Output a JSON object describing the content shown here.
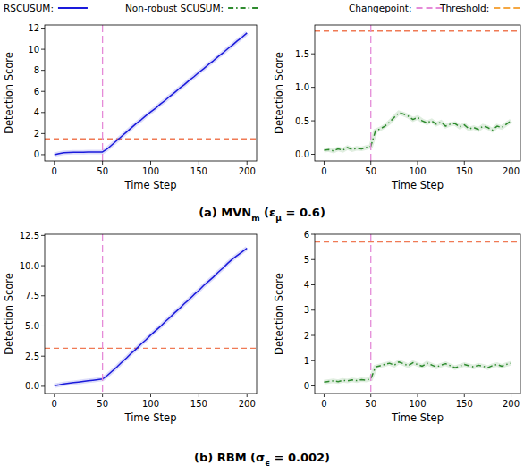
{
  "legend_entries": [
    {
      "name": "RSCUSUM:",
      "color": "#1a1adb",
      "line_style": "solid"
    },
    {
      "name": "Non-robust SCUSUM:",
      "color": "#2e8b2e",
      "line_style": "dashdot"
    },
    {
      "name": "Changepoint:",
      "color": "#e58bd8",
      "line_style": "dashed"
    },
    {
      "name": "Threshold:",
      "color": "#f5a742",
      "line_style": "dashed"
    }
  ],
  "captions": [
    {
      "parts": [
        {
          "text": "(a) MVN"
        },
        {
          "text": "m",
          "sub": true
        },
        {
          "text": " (ε"
        },
        {
          "text": "μ",
          "sub": true
        },
        {
          "text": " = 0.6)"
        }
      ]
    },
    {
      "parts": [
        {
          "text": "(b) RBM (σ"
        },
        {
          "text": "ϵ",
          "sub": true
        },
        {
          "text": " = 0.002)"
        }
      ]
    }
  ],
  "chart_data": [
    {
      "type": "line",
      "xlabel": "Time Step",
      "ylabel": "Detection Score",
      "x": [
        0,
        5,
        10,
        15,
        20,
        25,
        30,
        35,
        40,
        45,
        50,
        55,
        60,
        65,
        70,
        75,
        80,
        85,
        90,
        95,
        100,
        105,
        110,
        115,
        120,
        125,
        130,
        135,
        140,
        145,
        150,
        155,
        160,
        165,
        170,
        175,
        180,
        185,
        190,
        195,
        200
      ],
      "series": [
        {
          "color": "#1a1adb",
          "line_style": "solid",
          "values": [
            0.0,
            0.1,
            0.18,
            0.2,
            0.22,
            0.23,
            0.22,
            0.24,
            0.25,
            0.24,
            0.25,
            0.55,
            0.95,
            1.35,
            1.75,
            2.15,
            2.55,
            2.95,
            3.3,
            3.7,
            4.05,
            4.4,
            4.8,
            5.15,
            5.55,
            5.9,
            6.3,
            6.65,
            7.05,
            7.4,
            7.8,
            8.15,
            8.55,
            8.9,
            9.3,
            9.65,
            10.05,
            10.4,
            10.8,
            11.15,
            11.55
          ]
        }
      ],
      "changepoint": 50,
      "changepoint_color": "#e58bd8",
      "threshold": 1.5,
      "threshold_color": "#f07a55",
      "xlim": [
        -10,
        210
      ],
      "ylim": [
        -0.6,
        12.3
      ],
      "xticks": [
        0,
        50,
        100,
        150,
        200
      ],
      "yticks": [
        0,
        2,
        4,
        6,
        8,
        10,
        12
      ]
    },
    {
      "type": "line",
      "xlabel": "Time Step",
      "ylabel": "Detection Score",
      "x": [
        0,
        5,
        10,
        15,
        20,
        25,
        30,
        35,
        40,
        45,
        50,
        55,
        60,
        65,
        70,
        75,
        80,
        85,
        90,
        95,
        100,
        105,
        110,
        115,
        120,
        125,
        130,
        135,
        140,
        145,
        150,
        155,
        160,
        165,
        170,
        175,
        180,
        185,
        190,
        195,
        200
      ],
      "series": [
        {
          "color": "#2e8b2e",
          "line_style": "dashdot",
          "values": [
            0.06,
            0.07,
            0.05,
            0.08,
            0.06,
            0.1,
            0.07,
            0.09,
            0.08,
            0.1,
            0.12,
            0.35,
            0.38,
            0.42,
            0.48,
            0.55,
            0.62,
            0.6,
            0.57,
            0.52,
            0.55,
            0.5,
            0.47,
            0.5,
            0.45,
            0.48,
            0.42,
            0.45,
            0.46,
            0.41,
            0.44,
            0.38,
            0.4,
            0.37,
            0.42,
            0.4,
            0.36,
            0.42,
            0.4,
            0.45,
            0.5
          ]
        }
      ],
      "changepoint": 50,
      "changepoint_color": "#e58bd8",
      "threshold": 1.84,
      "threshold_color": "#f07a55",
      "xlim": [
        -10,
        210
      ],
      "ylim": [
        -0.1,
        1.93
      ],
      "xticks": [
        0,
        50,
        100,
        150,
        200
      ],
      "yticks": [
        {
          "value": 0,
          "label": "0.0"
        },
        {
          "value": 0.5,
          "label": "0.5"
        },
        {
          "value": 1,
          "label": "1.0"
        },
        {
          "value": 1.5,
          "label": "1.5"
        }
      ]
    },
    {
      "type": "line",
      "xlabel": "Time Step",
      "ylabel": "Detection Score",
      "x": [
        0,
        5,
        10,
        15,
        20,
        25,
        30,
        35,
        40,
        45,
        50,
        55,
        60,
        65,
        70,
        75,
        80,
        85,
        90,
        95,
        100,
        105,
        110,
        115,
        120,
        125,
        130,
        135,
        140,
        145,
        150,
        155,
        160,
        165,
        170,
        175,
        180,
        185,
        190,
        195,
        200
      ],
      "series": [
        {
          "color": "#1a1adb",
          "line_style": "solid",
          "values": [
            0.05,
            0.12,
            0.2,
            0.25,
            0.3,
            0.35,
            0.4,
            0.45,
            0.5,
            0.55,
            0.6,
            0.9,
            1.25,
            1.6,
            2.0,
            2.35,
            2.75,
            3.1,
            3.5,
            3.85,
            4.25,
            4.6,
            4.95,
            5.35,
            5.7,
            6.1,
            6.45,
            6.85,
            7.2,
            7.6,
            7.95,
            8.35,
            8.7,
            9.05,
            9.45,
            9.8,
            10.2,
            10.55,
            10.85,
            11.15,
            11.45
          ]
        }
      ],
      "changepoint": 50,
      "changepoint_color": "#e58bd8",
      "threshold": 3.15,
      "threshold_color": "#f07a55",
      "xlim": [
        -10,
        210
      ],
      "ylim": [
        -0.6,
        12.6
      ],
      "xticks": [
        0,
        50,
        100,
        150,
        200
      ],
      "yticks": [
        {
          "value": 0,
          "label": "0.0"
        },
        {
          "value": 2.5,
          "label": "2.5"
        },
        {
          "value": 5,
          "label": "5.0"
        },
        {
          "value": 7.5,
          "label": "7.5"
        },
        {
          "value": 10,
          "label": "10.0"
        },
        {
          "value": 12.5,
          "label": "12.5"
        }
      ]
    },
    {
      "type": "line",
      "xlabel": "Time Step",
      "ylabel": "Detection Score",
      "x": [
        0,
        5,
        10,
        15,
        20,
        25,
        30,
        35,
        40,
        45,
        50,
        55,
        60,
        65,
        70,
        75,
        80,
        85,
        90,
        95,
        100,
        105,
        110,
        115,
        120,
        125,
        130,
        135,
        140,
        145,
        150,
        155,
        160,
        165,
        170,
        175,
        180,
        185,
        190,
        195,
        200
      ],
      "series": [
        {
          "color": "#2e8b2e",
          "line_style": "dashdot",
          "values": [
            0.15,
            0.18,
            0.2,
            0.17,
            0.22,
            0.2,
            0.24,
            0.21,
            0.25,
            0.23,
            0.28,
            0.75,
            0.8,
            0.85,
            0.9,
            0.82,
            0.95,
            0.88,
            0.8,
            0.92,
            0.85,
            0.78,
            0.9,
            0.83,
            0.75,
            0.82,
            0.88,
            0.8,
            0.72,
            0.78,
            0.85,
            0.8,
            0.75,
            0.82,
            0.78,
            0.72,
            0.8,
            0.85,
            0.78,
            0.85,
            0.9
          ]
        }
      ],
      "changepoint": 50,
      "changepoint_color": "#e58bd8",
      "threshold": 5.7,
      "threshold_color": "#f07a55",
      "xlim": [
        -10,
        210
      ],
      "ylim": [
        -0.3,
        6.0
      ],
      "xticks": [
        0,
        50,
        100,
        150,
        200
      ],
      "yticks": [
        0,
        1,
        2,
        3,
        4,
        5,
        6
      ]
    }
  ]
}
